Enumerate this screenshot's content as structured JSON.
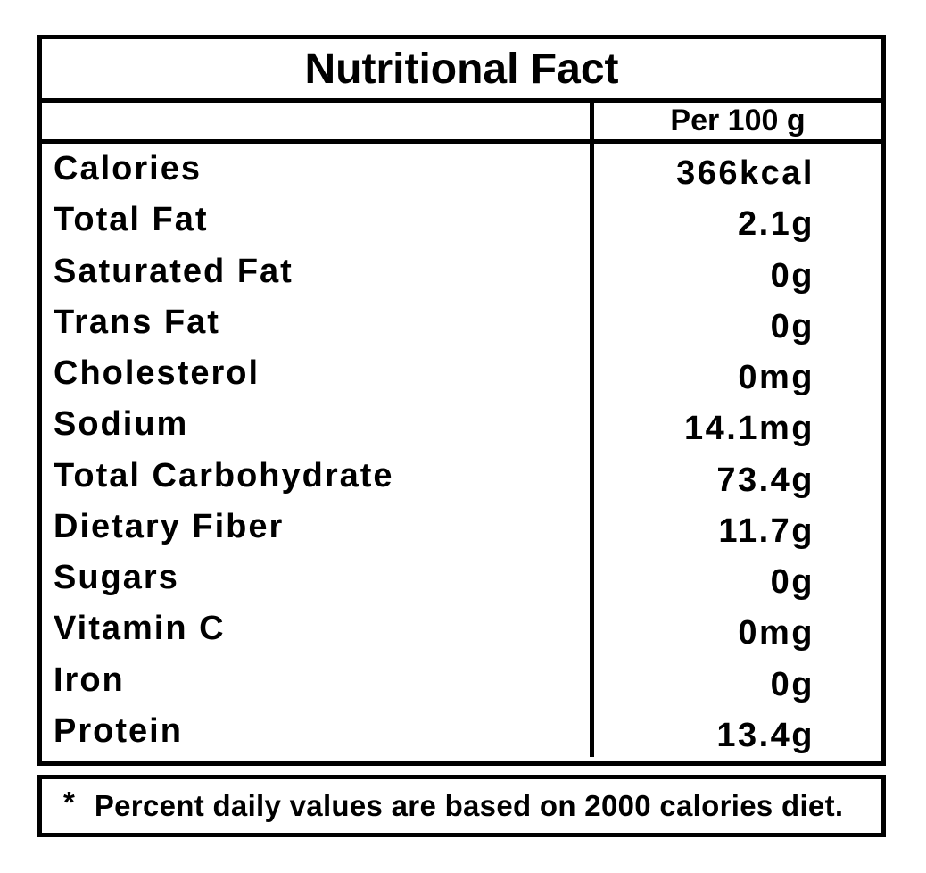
{
  "title": "Nutritional Fact",
  "columns": {
    "amount_header": "Per 100 g"
  },
  "nutrients": [
    {
      "label": "Calories",
      "value": "366kcal"
    },
    {
      "label": "Total Fat",
      "value": "2.1g"
    },
    {
      "label": "Saturated Fat",
      "value": "0g"
    },
    {
      "label": "Trans Fat",
      "value": "0g"
    },
    {
      "label": "Cholesterol",
      "value": "0mg"
    },
    {
      "label": "Sodium",
      "value": "14.1mg"
    },
    {
      "label": "Total Carbohydrate",
      "value": "73.4g"
    },
    {
      "label": "Dietary Fiber",
      "value": "11.7g"
    },
    {
      "label": "Sugars",
      "value": "0g"
    },
    {
      "label": "Vitamin C",
      "value": "0mg"
    },
    {
      "label": "Iron",
      "value": "0g"
    },
    {
      "label": "Protein",
      "value": "13.4g"
    }
  ],
  "footnote": {
    "marker": "*",
    "text": "Percent daily values are based on 2000 calories diet."
  },
  "colors": {
    "border": "#000000",
    "background": "#ffffff",
    "text": "#000000"
  }
}
